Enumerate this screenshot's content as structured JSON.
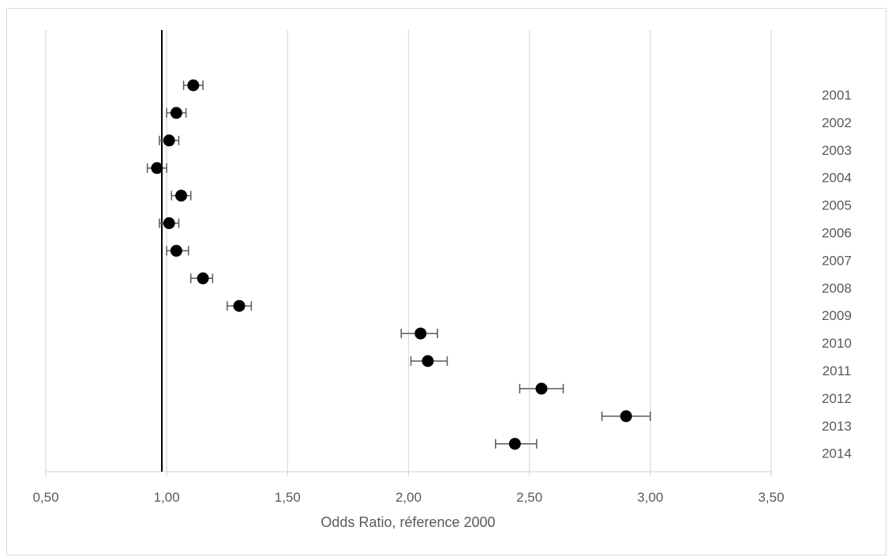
{
  "chart_data": {
    "type": "scatter",
    "xlabel": "Odds Ratio, réference 2000",
    "xlim": [
      0.5,
      3.5
    ],
    "xticks": [
      "0,50",
      "1,00",
      "1,50",
      "2,00",
      "2,50",
      "3,00",
      "3,50"
    ],
    "reference_line": 0.98,
    "grid": true,
    "categories": [
      "2001",
      "2002",
      "2003",
      "2004",
      "2005",
      "2006",
      "2007",
      "2008",
      "2009",
      "2010",
      "2011",
      "2012",
      "2013",
      "2014"
    ],
    "points": [
      {
        "year": "2001",
        "or": 1.11,
        "lo": 1.07,
        "hi": 1.15
      },
      {
        "year": "2002",
        "or": 1.04,
        "lo": 1.0,
        "hi": 1.08
      },
      {
        "year": "2003",
        "or": 1.01,
        "lo": 0.97,
        "hi": 1.05
      },
      {
        "year": "2004",
        "or": 0.96,
        "lo": 0.92,
        "hi": 1.0
      },
      {
        "year": "2005",
        "or": 1.06,
        "lo": 1.02,
        "hi": 1.1
      },
      {
        "year": "2006",
        "or": 1.01,
        "lo": 0.97,
        "hi": 1.05
      },
      {
        "year": "2007",
        "or": 1.04,
        "lo": 1.0,
        "hi": 1.09
      },
      {
        "year": "2008",
        "or": 1.15,
        "lo": 1.1,
        "hi": 1.19
      },
      {
        "year": "2009",
        "or": 1.3,
        "lo": 1.25,
        "hi": 1.35
      },
      {
        "year": "2010",
        "or": 2.05,
        "lo": 1.97,
        "hi": 2.12
      },
      {
        "year": "2011",
        "or": 2.08,
        "lo": 2.01,
        "hi": 2.16
      },
      {
        "year": "2012",
        "or": 2.55,
        "lo": 2.46,
        "hi": 2.64
      },
      {
        "year": "2013",
        "or": 2.9,
        "lo": 2.8,
        "hi": 3.0
      },
      {
        "year": "2014",
        "or": 2.44,
        "lo": 2.36,
        "hi": 2.53
      }
    ],
    "colors": {
      "marker": "#000000",
      "errorbar": "#595959",
      "grid": "#d9d9d9",
      "reference": "#000000",
      "text": "#595959"
    }
  }
}
